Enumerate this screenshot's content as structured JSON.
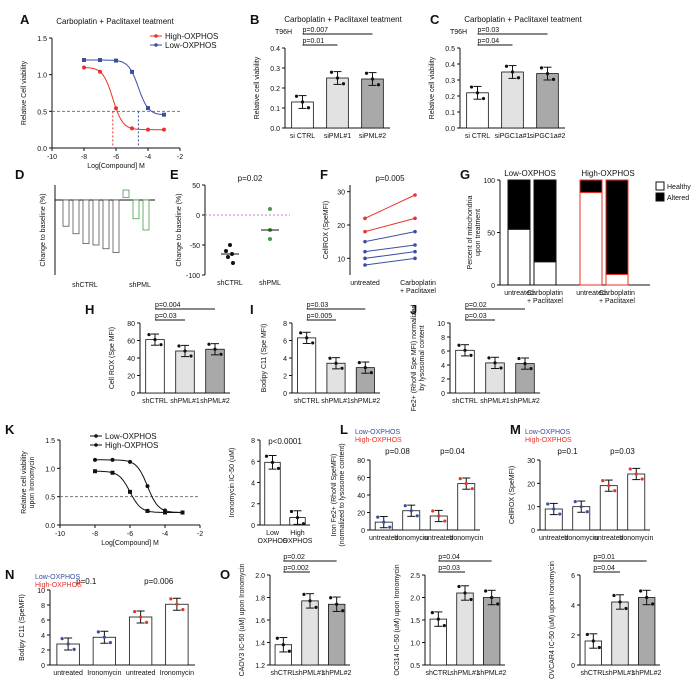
{
  "panels": [
    {
      "id": "A",
      "letter": "A",
      "title": "Carboplatin + Paclitaxel teatment",
      "type": "curve",
      "ylabel": "Relative Cell viability",
      "xlabel": "Log[Compound] M",
      "xticks": [
        "-10",
        "-8",
        "-6",
        "-4",
        "-2"
      ],
      "yticks": [
        "0.0",
        "0.5",
        "1.0",
        "1.5"
      ],
      "legend": [
        {
          "name": "High-OXPHOS",
          "color": "#e8322a"
        },
        {
          "name": "Low-OXPHOS",
          "color": "#3a4fa0"
        }
      ]
    },
    {
      "id": "B",
      "letter": "B",
      "title": "Carboplatin + Paclitaxel teatment",
      "subtitle": "T96H",
      "type": "bar",
      "ylabel": "Relative cell viability",
      "yticks": [
        "0.0",
        "0.1",
        "0.2",
        "0.3",
        "0.4"
      ],
      "categories": [
        "si CTRL",
        "siPML#1",
        "siPML#2"
      ],
      "values": [
        0.13,
        0.25,
        0.245
      ],
      "pvals": [
        {
          "label": "p=0.007",
          "from": 0,
          "to": 2
        },
        {
          "label": "p=0.01",
          "from": 0,
          "to": 1
        }
      ]
    },
    {
      "id": "C",
      "letter": "C",
      "title": "Carboplatin + Paclitaxel teatment",
      "subtitle": "T96H",
      "type": "bar",
      "ylabel": "Relative cell viability",
      "yticks": [
        "0.0",
        "0.1",
        "0.2",
        "0.3",
        "0.4",
        "0.5"
      ],
      "categories": [
        "si CTRL",
        "siPGC1a#1",
        "siPGC1a#2"
      ],
      "values": [
        0.22,
        0.35,
        0.34
      ],
      "pvals": [
        {
          "label": "p=0.03",
          "from": 0,
          "to": 2
        },
        {
          "label": "p=0.04",
          "from": 0,
          "to": 1
        }
      ]
    },
    {
      "id": "D",
      "letter": "D",
      "type": "waterfall",
      "ylabel": "Change to baseline (%)",
      "categories": [
        "shCTRL",
        "shPML"
      ]
    },
    {
      "id": "E",
      "letter": "E",
      "type": "dots",
      "ylabel": "Change to baseline (%)",
      "yticks": [
        "50",
        "0",
        "-50",
        "-100"
      ],
      "categories": [
        "shCTRL",
        "shPML"
      ],
      "pvals": [
        {
          "label": "p=0.02"
        }
      ]
    },
    {
      "id": "F",
      "letter": "F",
      "type": "paired",
      "ylabel": "CellROX (SpeMFI)",
      "yticks": [
        "10",
        "20",
        "30"
      ],
      "categories": [
        "untreated",
        "Carboplatin\n+ Paclitaxel"
      ],
      "pvals": [
        {
          "label": "p=0.005"
        }
      ]
    },
    {
      "id": "G",
      "letter": "G",
      "type": "stacked",
      "ylabel": "Percent of mitochondria upon treatment",
      "yticks": [
        "0",
        "50",
        "100"
      ],
      "groups": [
        "Low-OXPHOS",
        "High-OXPHOS"
      ],
      "categories": [
        "untreated",
        "Carboplatin\n+ Paclitaxel",
        "untreated",
        "Carboplatin\n+ Paclitaxel"
      ],
      "legend": [
        {
          "name": "Healthy",
          "color": "#ffffff"
        },
        {
          "name": "Altered",
          "color": "#000000"
        }
      ]
    },
    {
      "id": "H",
      "letter": "H",
      "type": "bar",
      "ylabel": "Cell ROX (Spe MFI)",
      "yticks": [
        "0",
        "20",
        "40",
        "60",
        "80"
      ],
      "categories": [
        "shCTRL",
        "shPML#1",
        "shPML#2"
      ],
      "values": [
        61,
        48,
        50
      ],
      "pvals": [
        {
          "label": "p=0.004",
          "from": 0,
          "to": 2
        },
        {
          "label": "p=0.03",
          "from": 0,
          "to": 1
        }
      ]
    },
    {
      "id": "I",
      "letter": "I",
      "type": "bar",
      "ylabel": "Bodipy C11 (Spe MFI)",
      "yticks": [
        "0",
        "2",
        "4",
        "6",
        "8"
      ],
      "categories": [
        "shCTRL",
        "shPML#1",
        "shPML#2"
      ],
      "values": [
        6.3,
        3.4,
        2.9
      ],
      "pvals": [
        {
          "label": "p=0.03",
          "from": 0,
          "to": 2
        },
        {
          "label": "p=0.005",
          "from": 0,
          "to": 1
        }
      ]
    },
    {
      "id": "J",
      "letter": "J",
      "type": "bar",
      "ylabel": "Fe2+ (RhoNl Spe MFI) normalized by lysosomal content",
      "yticks": [
        "0",
        "2",
        "4",
        "6",
        "8",
        "10"
      ],
      "categories": [
        "shCTRL",
        "shPML#1",
        "shPML#2"
      ],
      "values": [
        6.1,
        4.3,
        4.2
      ],
      "pvals": [
        {
          "label": "p=0.02",
          "from": 0,
          "to": 2
        },
        {
          "label": "p=0.03",
          "from": 0,
          "to": 1
        }
      ]
    },
    {
      "id": "K",
      "letter": "K",
      "type": "curve",
      "ylabel": "Relative cell viability upon Ironomycin",
      "xlabel": "Log[Compound] M",
      "xticks": [
        "-10",
        "-8",
        "-6",
        "-4",
        "-2"
      ],
      "yticks": [
        "0.0",
        "0.5",
        "1.0",
        "1.5"
      ],
      "legend": [
        {
          "name": "Low-OXPHOS",
          "color": "#000000"
        },
        {
          "name": "High-OXPHOS",
          "color": "#000000"
        }
      ]
    },
    {
      "id": "K2",
      "letter": "",
      "type": "bar",
      "ylabel": "Ironomycin IC-50 (uM)",
      "yticks": [
        "0",
        "2",
        "4",
        "6",
        "8"
      ],
      "categories": [
        "Low\nOXPHOS",
        "High\nOXPHOS"
      ],
      "values": [
        5.9,
        0.7
      ],
      "pvals": [
        {
          "label": "p<0.0001"
        }
      ]
    },
    {
      "id": "L",
      "letter": "L",
      "type": "bar",
      "ylabel": "Iron Fe2+ (RhoNl SpeMFI) (normalized to lysosome content)",
      "yticks": [
        "0",
        "20",
        "40",
        "60",
        "80"
      ],
      "categories": [
        "untreated",
        "Ironomycin",
        "untreated",
        "Ironomycin"
      ],
      "values": [
        9,
        22,
        16,
        53
      ],
      "pvals": [
        {
          "label": "p=0.08"
        },
        {
          "label": "p=0.04"
        }
      ],
      "legend": [
        {
          "name": "Low-OXPHOS",
          "color": "#3a4fa0"
        },
        {
          "name": "High-OXPHOS",
          "color": "#e8322a"
        }
      ]
    },
    {
      "id": "M",
      "letter": "M",
      "type": "bar",
      "ylabel": "CellROX (SpeMFI)",
      "yticks": [
        "0",
        "10",
        "20",
        "30"
      ],
      "categories": [
        "untreated",
        "Ironomycin",
        "untreated",
        "Ironomycin"
      ],
      "values": [
        9,
        10,
        19,
        24
      ],
      "pvals": [
        {
          "label": "p=0.1"
        },
        {
          "label": "p=0.03"
        }
      ],
      "legend": [
        {
          "name": "Low-OXPHOS",
          "color": "#3a4fa0"
        },
        {
          "name": "High-OXPHOS",
          "color": "#e8322a"
        }
      ]
    },
    {
      "id": "N",
      "letter": "N",
      "type": "bar",
      "ylabel": "Bodipy C11 (SpeMFI)",
      "yticks": [
        "0",
        "2",
        "4",
        "6",
        "8",
        "10"
      ],
      "categories": [
        "untreated",
        "Ironomycin",
        "untreated",
        "Ironomycin"
      ],
      "values": [
        2.8,
        3.7,
        6.4,
        8.1
      ],
      "pvals": [
        {
          "label": "p=0.1"
        },
        {
          "label": "p=0.006"
        }
      ],
      "legend": [
        {
          "name": "Low-OXPHOS",
          "color": "#3a4fa0"
        },
        {
          "name": "High-OXPHOS",
          "color": "#e8322a"
        }
      ]
    },
    {
      "id": "O1",
      "letter": "O",
      "type": "bar",
      "ylabel": "CAOV3 IC-50 (uM) upon Ironomycin",
      "yticks": [
        "1.2",
        "1.4",
        "1.6",
        "1.8",
        "2.0"
      ],
      "categories": [
        "shCTRL",
        "shPML#1",
        "shPML#2"
      ],
      "values": [
        1.38,
        1.77,
        1.74
      ],
      "pvals": [
        {
          "label": "p=0.02",
          "from": 0,
          "to": 2
        },
        {
          "label": "p=0.002",
          "from": 0,
          "to": 1
        }
      ]
    },
    {
      "id": "O2",
      "letter": "",
      "type": "bar",
      "ylabel": "OC314 IC-50 (uM) upon Ironomycin",
      "yticks": [
        "0.5",
        "1.0",
        "1.5",
        "2.0",
        "2.5"
      ],
      "categories": [
        "shCTRL",
        "shPML#1",
        "shPML#2"
      ],
      "values": [
        1.52,
        2.1,
        2.0
      ],
      "pvals": [
        {
          "label": "p=0.04",
          "from": 0,
          "to": 2
        },
        {
          "label": "p=0.03",
          "from": 0,
          "to": 1
        }
      ]
    },
    {
      "id": "O3",
      "letter": "",
      "type": "bar",
      "ylabel": "OVCAR4 IC-50 (uM) upon Ironomycin",
      "yticks": [
        "0",
        "2",
        "4",
        "6"
      ],
      "categories": [
        "shCTRL",
        "shPML#1",
        "shPML#2"
      ],
      "values": [
        1.6,
        4.2,
        4.5
      ],
      "pvals": [
        {
          "label": "p=0.01",
          "from": 0,
          "to": 2
        },
        {
          "label": "p=0.04",
          "from": 0,
          "to": 1
        }
      ]
    }
  ]
}
